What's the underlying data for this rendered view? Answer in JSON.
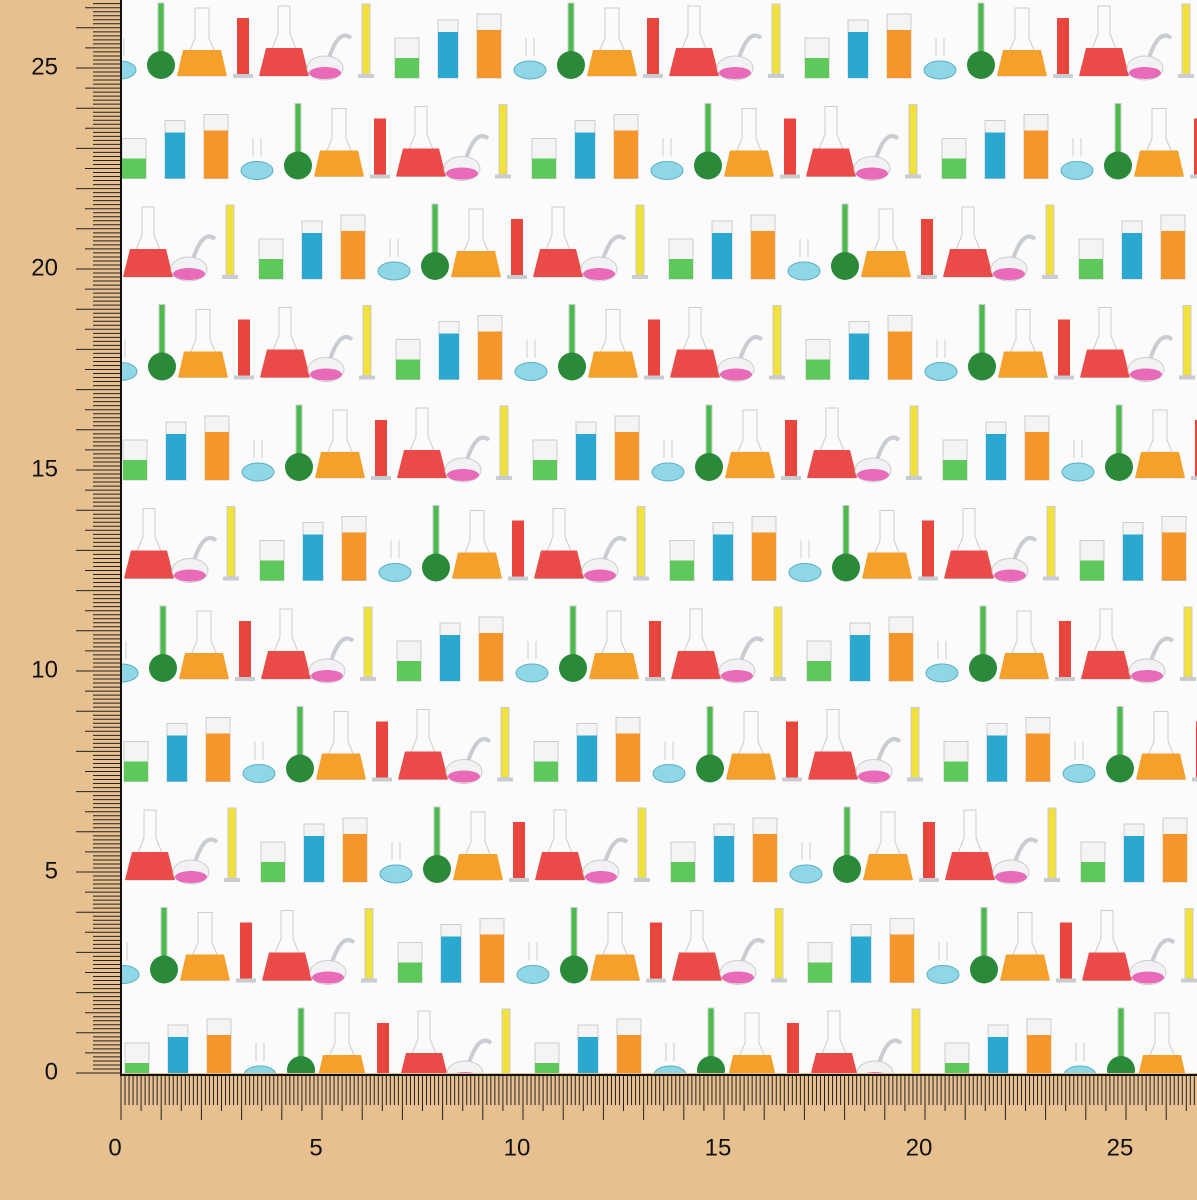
{
  "rulers": {
    "x_labels": [
      0,
      5,
      10,
      15,
      20,
      25
    ],
    "y_labels": [
      0,
      5,
      10,
      15,
      20,
      25
    ]
  }
}
